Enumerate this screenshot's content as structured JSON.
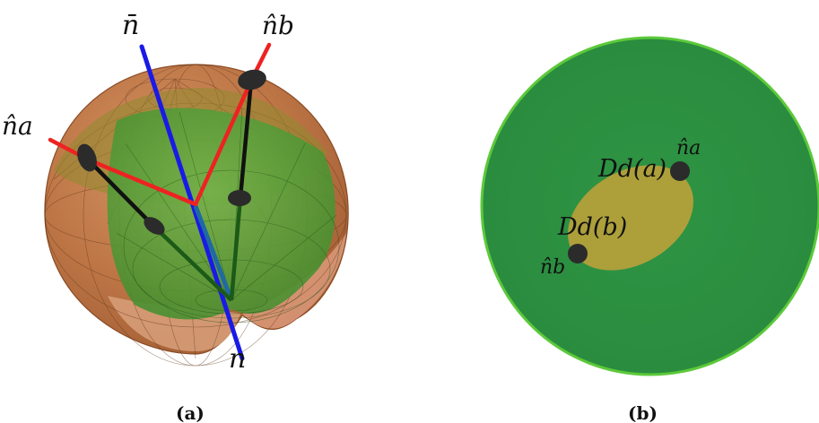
{
  "panel_a": {
    "caption": "(a)",
    "labels": {
      "n_bar": "n̄",
      "n_hat_b": "n̂b",
      "n_hat_a": "n̂a",
      "n": "n"
    }
  },
  "panel_b": {
    "caption": "(b)",
    "labels": {
      "D_d_a": "Dd(a)",
      "D_d_b": "Dd(b)",
      "n_hat_a": "n̂a",
      "n_hat_b": "n̂b"
    }
  },
  "colors": {
    "sphere_orange": "#c2773f",
    "sphere_green": "#4f9a34",
    "disk_green": "#2f9443",
    "disk_rim": "#5cc93a",
    "ellipse_fill": "#b4a03a",
    "axis_blue": "#1a1ae6",
    "normal_red": "#ee2222",
    "point_dark": "#2b2b2b"
  }
}
